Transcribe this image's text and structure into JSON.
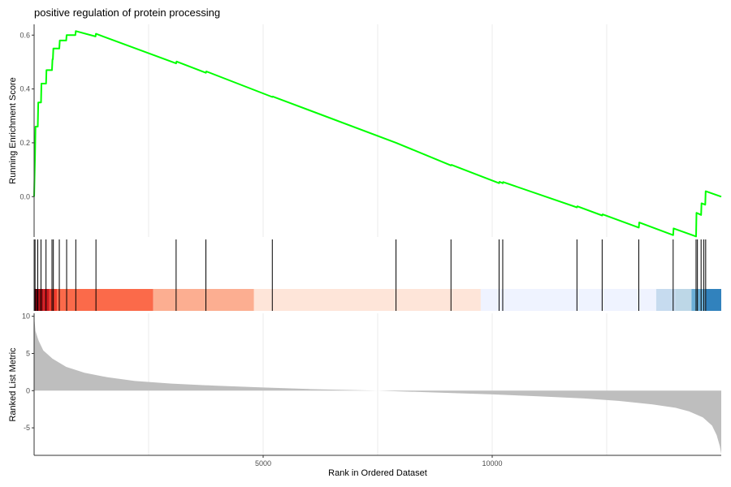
{
  "chart_data": {
    "type": "line",
    "title": "positive regulation of protein processing",
    "xlabel": "Rank in Ordered Dataset",
    "x_ticks": [
      5000,
      10000
    ],
    "xlim": [
      0,
      15000
    ],
    "colors": {
      "es_line": "#00ff00",
      "hit_line": "#000000",
      "metric_fill": "#bebebe",
      "grid": "#ebebeb",
      "axis": "#333333"
    },
    "running_es": {
      "ylabel": "Running Enrichment Score",
      "ylim": [
        -0.15,
        0.64
      ],
      "y_ticks": [
        0.0,
        0.2,
        0.4,
        0.6
      ],
      "points": [
        [
          0,
          0.0
        ],
        [
          20,
          0.15
        ],
        [
          30,
          0.26
        ],
        [
          80,
          0.26
        ],
        [
          90,
          0.35
        ],
        [
          150,
          0.35
        ],
        [
          160,
          0.42
        ],
        [
          260,
          0.42
        ],
        [
          270,
          0.47
        ],
        [
          390,
          0.47
        ],
        [
          400,
          0.51
        ],
        [
          410,
          0.51
        ],
        [
          420,
          0.55
        ],
        [
          550,
          0.55
        ],
        [
          560,
          0.58
        ],
        [
          700,
          0.58
        ],
        [
          710,
          0.6
        ],
        [
          900,
          0.6
        ],
        [
          910,
          0.615
        ],
        [
          1340,
          0.595
        ],
        [
          1350,
          0.605
        ],
        [
          3100,
          0.495
        ],
        [
          3110,
          0.502
        ],
        [
          3750,
          0.46
        ],
        [
          3760,
          0.465
        ],
        [
          5200,
          0.37
        ],
        [
          5210,
          0.372
        ],
        [
          7900,
          0.2
        ],
        [
          9100,
          0.116
        ],
        [
          9110,
          0.118
        ],
        [
          10150,
          0.05
        ],
        [
          10160,
          0.055
        ],
        [
          10230,
          0.05
        ],
        [
          10240,
          0.054
        ],
        [
          11850,
          -0.04
        ],
        [
          11860,
          -0.036
        ],
        [
          12400,
          -0.07
        ],
        [
          12410,
          -0.066
        ],
        [
          13200,
          -0.115
        ],
        [
          13210,
          -0.096
        ],
        [
          13950,
          -0.143
        ],
        [
          13960,
          -0.118
        ],
        [
          14450,
          -0.148
        ],
        [
          14460,
          -0.06
        ],
        [
          14560,
          -0.068
        ],
        [
          14570,
          -0.025
        ],
        [
          14650,
          -0.03
        ],
        [
          14660,
          0.02
        ],
        [
          15000,
          0.0
        ]
      ]
    },
    "hits": [
      20,
      80,
      150,
      260,
      390,
      420,
      550,
      710,
      910,
      1350,
      3100,
      3750,
      5200,
      7900,
      9100,
      10150,
      10230,
      11850,
      12400,
      13200,
      13950,
      14450,
      14480,
      14560,
      14620,
      14660
    ],
    "ranking_bands": [
      {
        "from": 0,
        "to": 80,
        "color": "#67000d"
      },
      {
        "from": 80,
        "to": 200,
        "color": "#a50f15"
      },
      {
        "from": 200,
        "to": 330,
        "color": "#cb181d"
      },
      {
        "from": 330,
        "to": 500,
        "color": "#ef3b2c"
      },
      {
        "from": 500,
        "to": 2600,
        "color": "#fb6a4a"
      },
      {
        "from": 2600,
        "to": 4800,
        "color": "#fcae91"
      },
      {
        "from": 4800,
        "to": 9750,
        "color": "#fee5d9"
      },
      {
        "from": 9750,
        "to": 13580,
        "color": "#eff3ff"
      },
      {
        "from": 13580,
        "to": 14000,
        "color": "#c6dbef"
      },
      {
        "from": 14000,
        "to": 14350,
        "color": "#bdd7e7"
      },
      {
        "from": 14350,
        "to": 14650,
        "color": "#6baed6"
      },
      {
        "from": 14650,
        "to": 15000,
        "color": "#3182bd"
      }
    ],
    "ranked_metric": {
      "ylabel": "Ranked List Metric",
      "ylim": [
        -8.7,
        10.4
      ],
      "y_ticks": [
        -5,
        0,
        5,
        10
      ],
      "points": [
        [
          0,
          10.0
        ],
        [
          30,
          8.0
        ],
        [
          100,
          6.7
        ],
        [
          200,
          5.4
        ],
        [
          400,
          4.3
        ],
        [
          700,
          3.2
        ],
        [
          1100,
          2.4
        ],
        [
          1600,
          1.8
        ],
        [
          2200,
          1.3
        ],
        [
          3000,
          0.95
        ],
        [
          4000,
          0.65
        ],
        [
          5000,
          0.42
        ],
        [
          6000,
          0.22
        ],
        [
          7000,
          0.08
        ],
        [
          7500,
          0.0
        ],
        [
          8000,
          -0.1
        ],
        [
          9000,
          -0.3
        ],
        [
          10000,
          -0.5
        ],
        [
          11000,
          -0.75
        ],
        [
          12000,
          -1.05
        ],
        [
          12800,
          -1.4
        ],
        [
          13500,
          -1.85
        ],
        [
          14000,
          -2.3
        ],
        [
          14300,
          -2.8
        ],
        [
          14600,
          -3.6
        ],
        [
          14800,
          -4.7
        ],
        [
          14900,
          -6.0
        ],
        [
          14970,
          -7.5
        ],
        [
          15000,
          -8.5
        ]
      ]
    }
  }
}
